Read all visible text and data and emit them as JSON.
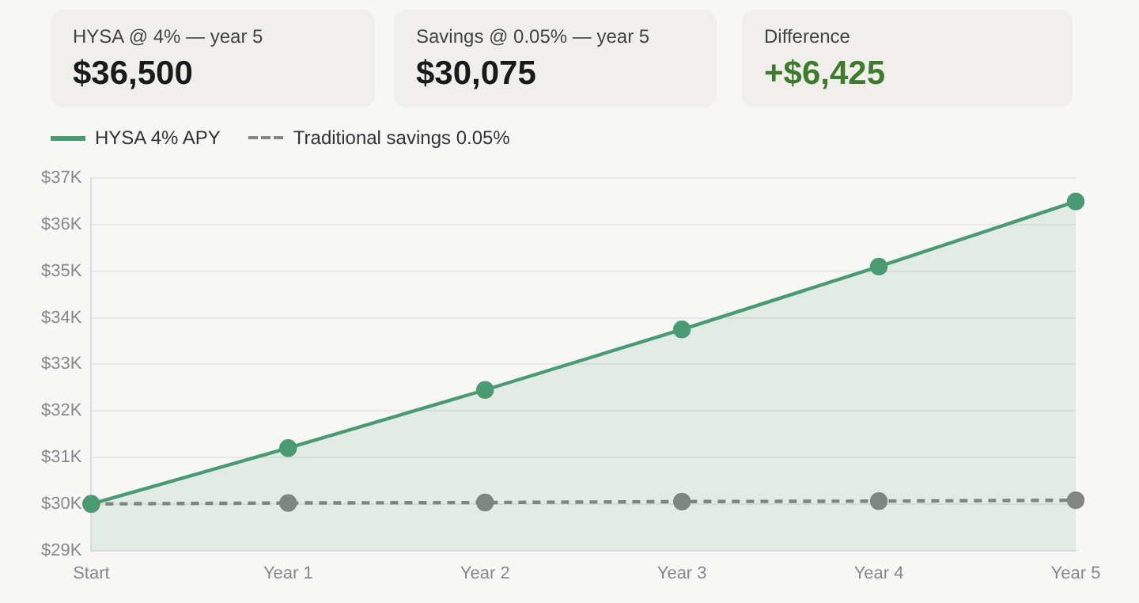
{
  "chart_data": {
    "type": "line",
    "categories": [
      "Start",
      "Year 1",
      "Year 2",
      "Year 3",
      "Year 4",
      "Year 5"
    ],
    "series": [
      {
        "name": "HYSA 4% APY",
        "type": "area",
        "color": "#4a9a74",
        "line_style": "solid",
        "values": [
          30000,
          31200,
          32450,
          33750,
          35100,
          36500
        ]
      },
      {
        "name": "Traditional savings 0.05%",
        "type": "line",
        "color": "#858582",
        "line_style": "dashed",
        "values": [
          30000,
          30020,
          30030,
          30050,
          30060,
          30080
        ]
      }
    ],
    "ylim": [
      29000,
      37000
    ],
    "yticks": [
      {
        "value": 29000,
        "label": "$29K"
      },
      {
        "value": 30000,
        "label": "$30K"
      },
      {
        "value": 31000,
        "label": "$31K"
      },
      {
        "value": 32000,
        "label": "$32K"
      },
      {
        "value": 33000,
        "label": "$33K"
      },
      {
        "value": 34000,
        "label": "$34K"
      },
      {
        "value": 35000,
        "label": "$35K"
      },
      {
        "value": 36000,
        "label": "$36K"
      },
      {
        "value": 37000,
        "label": "$37K"
      }
    ],
    "grid": "y",
    "legend": "top left",
    "marker": "circle",
    "annotations": [
      "HYSA @ 4% — year 5",
      "$36,500",
      "Savings @ 0.05% — year 5",
      "$30,075",
      "Difference",
      "+$6,425"
    ]
  }
}
